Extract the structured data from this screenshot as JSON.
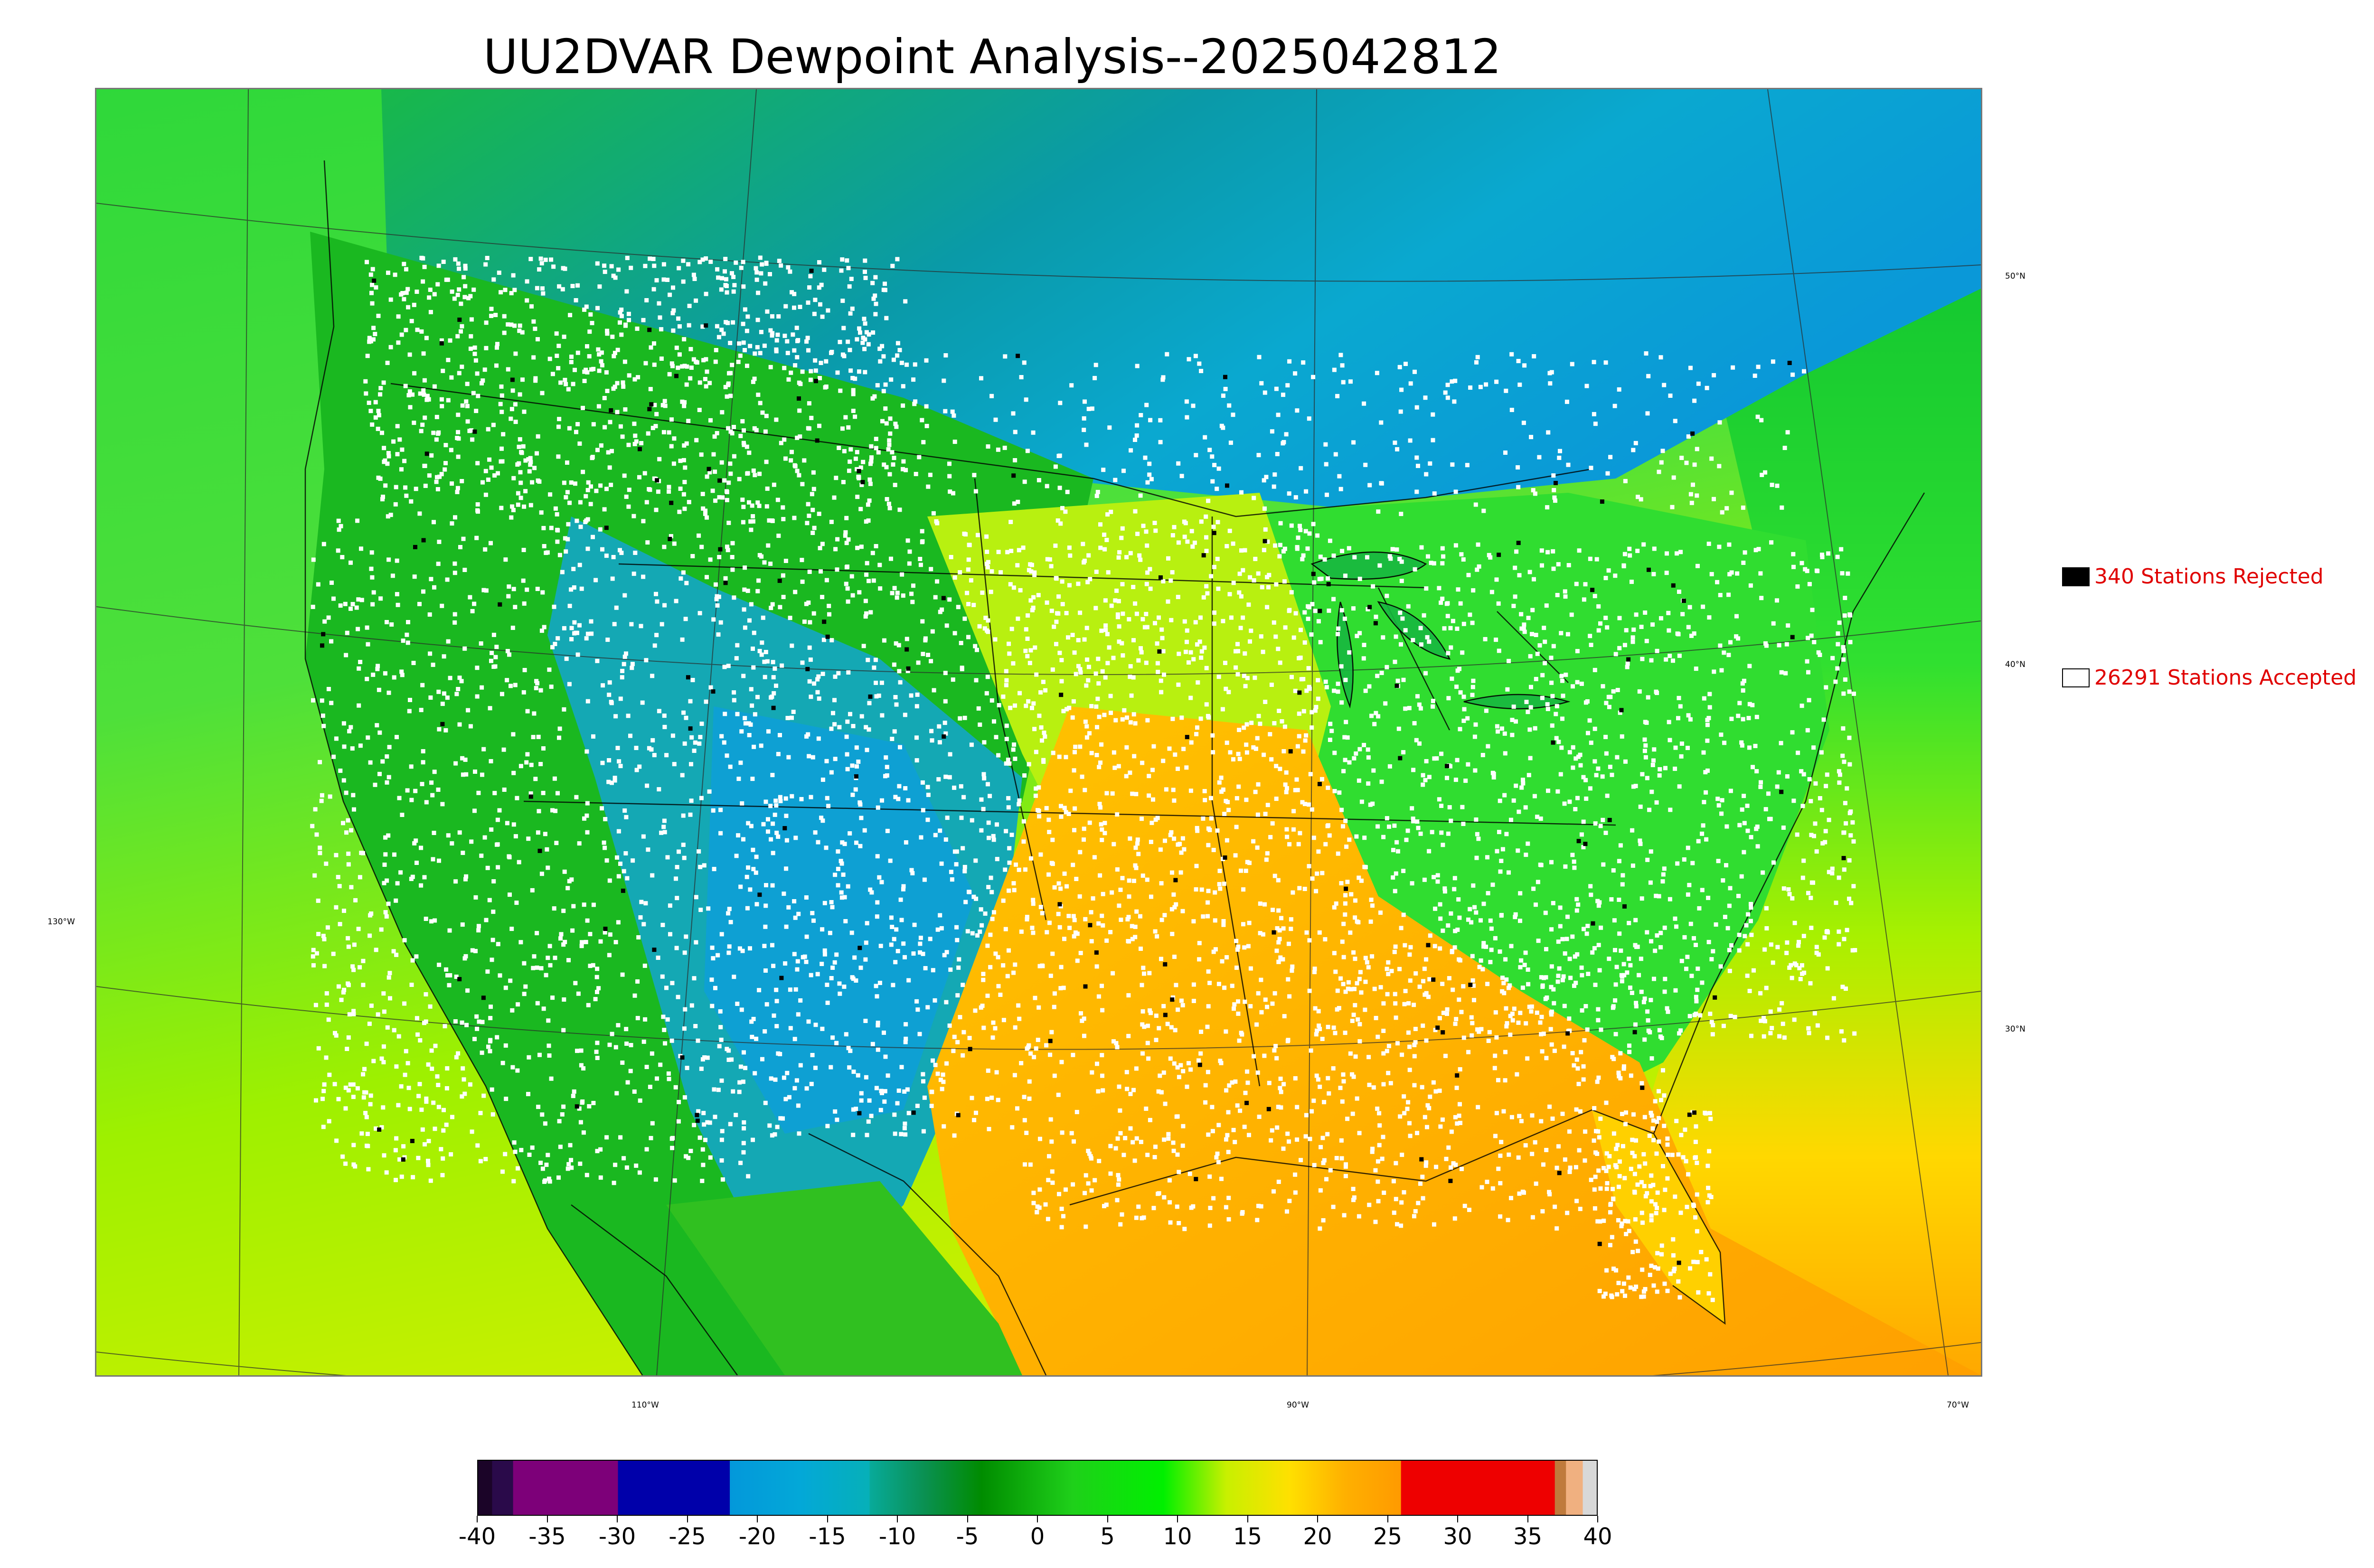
{
  "title": "UU2DVAR Dewpoint Analysis--2025042812",
  "legend": {
    "rejected": {
      "label": "340 Stations Rejected",
      "swatch_color": "#000000"
    },
    "accepted": {
      "label": "26291 Stations Accepted",
      "swatch_color": "#ffffff"
    }
  },
  "map": {
    "latitude_labels": [
      "50°N",
      "40°N",
      "30°N"
    ],
    "longitude_labels": [
      "130°W",
      "110°W",
      "90°W",
      "70°W"
    ],
    "station_marker_colors": {
      "accepted": "#ffffff",
      "rejected": "#000000"
    },
    "field_colors": {
      "ocean_north": "#3fe13a",
      "ocean_south": "#c7f000",
      "gulf": "#ffae00",
      "land_west": "#19c81e",
      "plains_dry": "#12a8c8",
      "southern_plains": "#ffc800",
      "east": "#33e033",
      "canada_north": "#0ba7d8"
    }
  },
  "colorbar": {
    "ticks": [
      "-40",
      "-35",
      "-30",
      "-25",
      "-20",
      "-15",
      "-10",
      "-5",
      "0",
      "5",
      "10",
      "15",
      "20",
      "25",
      "30",
      "35",
      "40"
    ],
    "range": [
      -40,
      40
    ],
    "segments": [
      {
        "from": -40,
        "to": -39,
        "color": "#1b0428"
      },
      {
        "from": -39,
        "to": -37.5,
        "color": "#2a0a4a"
      },
      {
        "from": -37.5,
        "to": -30,
        "color": "#7d0079"
      },
      {
        "from": -30,
        "to": -22,
        "color": "#0000aa"
      },
      {
        "from": -22,
        "to": -12,
        "gradient": [
          "#0398da",
          "#03a8d8",
          "#06b0b8"
        ]
      },
      {
        "from": -12,
        "to": -4,
        "gradient": [
          "#08aa9a",
          "#0a9050",
          "#008c00"
        ]
      },
      {
        "from": -4,
        "to": 9,
        "gradient": [
          "#008c00",
          "#1fd01a",
          "#00f000"
        ]
      },
      {
        "from": 9,
        "to": 18,
        "gradient": [
          "#00f000",
          "#c8f000",
          "#ffe000"
        ]
      },
      {
        "from": 18,
        "to": 26,
        "gradient": [
          "#ffe000",
          "#ffb000",
          "#ff9a00"
        ]
      },
      {
        "from": 26,
        "to": 37,
        "color": "#ee0000"
      },
      {
        "from": 37,
        "to": 37.8,
        "color": "#bf7a3c"
      },
      {
        "from": 37.8,
        "to": 39,
        "color": "#f0b080"
      },
      {
        "from": 39,
        "to": 40,
        "color": "#d8d8d8"
      }
    ]
  }
}
